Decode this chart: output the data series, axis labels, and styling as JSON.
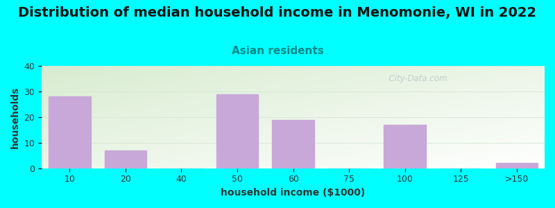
{
  "title": "Distribution of median household income in Menomonie, WI in 2022",
  "subtitle": "Asian residents",
  "xlabel": "household income ($1000)",
  "ylabel": "households",
  "bar_labels": [
    "10",
    "20",
    "40",
    "50",
    "60",
    "75",
    "100",
    "125",
    ">150"
  ],
  "bar_values": [
    28,
    7,
    0,
    29,
    19,
    0,
    17,
    0,
    2
  ],
  "bar_color": "#c8a8d8",
  "bar_edgecolor": "#c8a8d8",
  "ylim": [
    0,
    40
  ],
  "yticks": [
    0,
    10,
    20,
    30,
    40
  ],
  "background_outer": "#00FFFF",
  "plot_bg_topleft": "#d8ecd0",
  "plot_bg_bottomright": "#ffffff",
  "title_fontsize": 14,
  "subtitle_fontsize": 11,
  "subtitle_color": "#008888",
  "axis_label_fontsize": 10,
  "tick_fontsize": 9,
  "watermark_text": "  City-Data.com",
  "watermark_color": "#b8c8c8",
  "grid_color": "#d8e8d8",
  "grid_linewidth": 0.7
}
